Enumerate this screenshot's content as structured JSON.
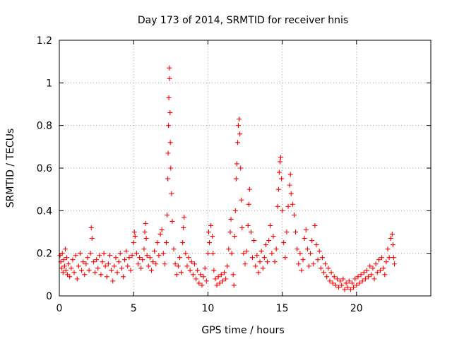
{
  "chart_data": {
    "type": "scatter",
    "title": "Day 173 of 2014, SRMTID for receiver hnis",
    "xlabel": "GPS time / hours",
    "ylabel": "SRMTID / TECUs",
    "xlim": [
      0,
      25
    ],
    "ylim": [
      0,
      1.2
    ],
    "xticks": [
      0,
      5,
      10,
      15,
      20
    ],
    "xtick_labels": [
      "0",
      "5",
      "10",
      "15",
      "20"
    ],
    "yticks": [
      0,
      0.2,
      0.4,
      0.6,
      0.8,
      1,
      1.2
    ],
    "ytick_labels": [
      "0",
      "0.2",
      "0.4",
      "0.6",
      "0.8",
      "1",
      "1.2"
    ],
    "grid": true,
    "marker": "+",
    "color": "#ff0000",
    "series": [
      {
        "name": "SRMTID",
        "points": [
          [
            0.05,
            0.19
          ],
          [
            0.1,
            0.16
          ],
          [
            0.15,
            0.13
          ],
          [
            0.2,
            0.2
          ],
          [
            0.25,
            0.11
          ],
          [
            0.3,
            0.17
          ],
          [
            0.35,
            0.14
          ],
          [
            0.4,
            0.22
          ],
          [
            0.45,
            0.12
          ],
          [
            0.5,
            0.18
          ],
          [
            0.55,
            0.1
          ],
          [
            0.6,
            0.15
          ],
          [
            0.7,
            0.09
          ],
          [
            0.8,
            0.13
          ],
          [
            0.9,
            0.17
          ],
          [
            1.0,
            0.11
          ],
          [
            1.1,
            0.19
          ],
          [
            1.2,
            0.08
          ],
          [
            1.3,
            0.14
          ],
          [
            1.4,
            0.2
          ],
          [
            1.5,
            0.12
          ],
          [
            1.6,
            0.16
          ],
          [
            1.7,
            0.1
          ],
          [
            1.8,
            0.15
          ],
          [
            1.9,
            0.18
          ],
          [
            2.0,
            0.12
          ],
          [
            2.1,
            0.2
          ],
          [
            2.15,
            0.32
          ],
          [
            2.2,
            0.27
          ],
          [
            2.3,
            0.16
          ],
          [
            2.4,
            0.11
          ],
          [
            2.5,
            0.17
          ],
          [
            2.6,
            0.13
          ],
          [
            2.7,
            0.19
          ],
          [
            2.8,
            0.1
          ],
          [
            2.9,
            0.16
          ],
          [
            3.0,
            0.2
          ],
          [
            3.1,
            0.14
          ],
          [
            3.2,
            0.09
          ],
          [
            3.3,
            0.15
          ],
          [
            3.4,
            0.19
          ],
          [
            3.5,
            0.12
          ],
          [
            3.6,
            0.07
          ],
          [
            3.7,
            0.14
          ],
          [
            3.8,
            0.18
          ],
          [
            3.9,
            0.11
          ],
          [
            4.0,
            0.16
          ],
          [
            4.1,
            0.2
          ],
          [
            4.2,
            0.13
          ],
          [
            4.3,
            0.09
          ],
          [
            4.4,
            0.17
          ],
          [
            4.5,
            0.21
          ],
          [
            4.6,
            0.14
          ],
          [
            4.7,
            0.18
          ],
          [
            4.8,
            0.12
          ],
          [
            4.9,
            0.19
          ],
          [
            5.0,
            0.25
          ],
          [
            5.05,
            0.3
          ],
          [
            5.1,
            0.28
          ],
          [
            5.2,
            0.2
          ],
          [
            5.3,
            0.15
          ],
          [
            5.4,
            0.18
          ],
          [
            5.5,
            0.13
          ],
          [
            5.6,
            0.17
          ],
          [
            5.7,
            0.22
          ],
          [
            5.75,
            0.3
          ],
          [
            5.8,
            0.34
          ],
          [
            5.85,
            0.27
          ],
          [
            5.9,
            0.19
          ],
          [
            6.0,
            0.14
          ],
          [
            6.1,
            0.18
          ],
          [
            6.2,
            0.12
          ],
          [
            6.3,
            0.16
          ],
          [
            6.4,
            0.21
          ],
          [
            6.5,
            0.15
          ],
          [
            6.6,
            0.25
          ],
          [
            6.7,
            0.19
          ],
          [
            6.8,
            0.29
          ],
          [
            6.9,
            0.31
          ],
          [
            7.0,
            0.2
          ],
          [
            7.1,
            0.15
          ],
          [
            7.2,
            0.25
          ],
          [
            7.25,
            0.38
          ],
          [
            7.3,
            0.55
          ],
          [
            7.32,
            0.67
          ],
          [
            7.35,
            0.8
          ],
          [
            7.37,
            0.93
          ],
          [
            7.4,
            1.07
          ],
          [
            7.42,
            1.02
          ],
          [
            7.45,
            0.86
          ],
          [
            7.47,
            0.72
          ],
          [
            7.5,
            0.6
          ],
          [
            7.55,
            0.48
          ],
          [
            7.6,
            0.35
          ],
          [
            7.7,
            0.22
          ],
          [
            7.8,
            0.15
          ],
          [
            7.9,
            0.1
          ],
          [
            8.0,
            0.14
          ],
          [
            8.1,
            0.18
          ],
          [
            8.2,
            0.11
          ],
          [
            8.3,
            0.25
          ],
          [
            8.35,
            0.32
          ],
          [
            8.4,
            0.37
          ],
          [
            8.5,
            0.2
          ],
          [
            8.6,
            0.14
          ],
          [
            8.7,
            0.18
          ],
          [
            8.8,
            0.12
          ],
          [
            8.9,
            0.16
          ],
          [
            9.0,
            0.1
          ],
          [
            9.1,
            0.15
          ],
          [
            9.2,
            0.08
          ],
          [
            9.3,
            0.12
          ],
          [
            9.4,
            0.06
          ],
          [
            9.5,
            0.1
          ],
          [
            9.6,
            0.05
          ],
          [
            9.7,
            0.09
          ],
          [
            9.8,
            0.13
          ],
          [
            9.9,
            0.07
          ],
          [
            10.0,
            0.2
          ],
          [
            10.05,
            0.3
          ],
          [
            10.1,
            0.25
          ],
          [
            10.2,
            0.33
          ],
          [
            10.3,
            0.28
          ],
          [
            10.35,
            0.2
          ],
          [
            10.4,
            0.12
          ],
          [
            10.5,
            0.08
          ],
          [
            10.6,
            0.05
          ],
          [
            10.7,
            0.09
          ],
          [
            10.8,
            0.06
          ],
          [
            10.9,
            0.1
          ],
          [
            11.0,
            0.07
          ],
          [
            11.1,
            0.11
          ],
          [
            11.2,
            0.08
          ],
          [
            11.3,
            0.14
          ],
          [
            11.4,
            0.22
          ],
          [
            11.5,
            0.3
          ],
          [
            11.55,
            0.36
          ],
          [
            11.6,
            0.2
          ],
          [
            11.7,
            0.1
          ],
          [
            11.75,
            0.05
          ],
          [
            11.8,
            0.28
          ],
          [
            11.85,
            0.4
          ],
          [
            11.9,
            0.55
          ],
          [
            11.95,
            0.62
          ],
          [
            12.0,
            0.72
          ],
          [
            12.05,
            0.8
          ],
          [
            12.1,
            0.83
          ],
          [
            12.15,
            0.76
          ],
          [
            12.2,
            0.6
          ],
          [
            12.25,
            0.45
          ],
          [
            12.3,
            0.32
          ],
          [
            12.4,
            0.2
          ],
          [
            12.5,
            0.15
          ],
          [
            12.6,
            0.21
          ],
          [
            12.7,
            0.33
          ],
          [
            12.75,
            0.43
          ],
          [
            12.8,
            0.5
          ],
          [
            12.9,
            0.3
          ],
          [
            13.0,
            0.18
          ],
          [
            13.1,
            0.26
          ],
          [
            13.2,
            0.14
          ],
          [
            13.3,
            0.19
          ],
          [
            13.4,
            0.11
          ],
          [
            13.5,
            0.16
          ],
          [
            13.6,
            0.21
          ],
          [
            13.7,
            0.13
          ],
          [
            13.8,
            0.18
          ],
          [
            13.9,
            0.24
          ],
          [
            14.0,
            0.16
          ],
          [
            14.1,
            0.26
          ],
          [
            14.2,
            0.33
          ],
          [
            14.3,
            0.2
          ],
          [
            14.4,
            0.28
          ],
          [
            14.5,
            0.16
          ],
          [
            14.6,
            0.22
          ],
          [
            14.7,
            0.42
          ],
          [
            14.75,
            0.5
          ],
          [
            14.8,
            0.58
          ],
          [
            14.85,
            0.63
          ],
          [
            14.9,
            0.65
          ],
          [
            14.95,
            0.55
          ],
          [
            15.0,
            0.4
          ],
          [
            15.1,
            0.25
          ],
          [
            15.2,
            0.18
          ],
          [
            15.3,
            0.3
          ],
          [
            15.4,
            0.42
          ],
          [
            15.5,
            0.52
          ],
          [
            15.55,
            0.57
          ],
          [
            15.6,
            0.48
          ],
          [
            15.7,
            0.43
          ],
          [
            15.8,
            0.38
          ],
          [
            15.9,
            0.3
          ],
          [
            16.0,
            0.22
          ],
          [
            16.1,
            0.15
          ],
          [
            16.2,
            0.2
          ],
          [
            16.3,
            0.12
          ],
          [
            16.4,
            0.17
          ],
          [
            16.5,
            0.27
          ],
          [
            16.6,
            0.31
          ],
          [
            16.7,
            0.22
          ],
          [
            16.8,
            0.14
          ],
          [
            16.9,
            0.2
          ],
          [
            17.0,
            0.26
          ],
          [
            17.1,
            0.15
          ],
          [
            17.2,
            0.33
          ],
          [
            17.3,
            0.24
          ],
          [
            17.4,
            0.17
          ],
          [
            17.5,
            0.21
          ],
          [
            17.6,
            0.13
          ],
          [
            17.7,
            0.18
          ],
          [
            17.8,
            0.11
          ],
          [
            17.9,
            0.15
          ],
          [
            18.0,
            0.09
          ],
          [
            18.1,
            0.13
          ],
          [
            18.2,
            0.07
          ],
          [
            18.3,
            0.11
          ],
          [
            18.4,
            0.06
          ],
          [
            18.5,
            0.09
          ],
          [
            18.6,
            0.05
          ],
          [
            18.7,
            0.08
          ],
          [
            18.8,
            0.04
          ],
          [
            18.9,
            0.07
          ],
          [
            19.0,
            0.05
          ],
          [
            19.1,
            0.08
          ],
          [
            19.2,
            0.03
          ],
          [
            19.3,
            0.06
          ],
          [
            19.4,
            0.04
          ],
          [
            19.5,
            0.07
          ],
          [
            19.6,
            0.03
          ],
          [
            19.7,
            0.06
          ],
          [
            19.8,
            0.04
          ],
          [
            19.9,
            0.08
          ],
          [
            20.0,
            0.05
          ],
          [
            20.1,
            0.09
          ],
          [
            20.2,
            0.06
          ],
          [
            20.3,
            0.1
          ],
          [
            20.4,
            0.07
          ],
          [
            20.5,
            0.11
          ],
          [
            20.6,
            0.08
          ],
          [
            20.7,
            0.12
          ],
          [
            20.8,
            0.09
          ],
          [
            20.9,
            0.14
          ],
          [
            21.0,
            0.1
          ],
          [
            21.1,
            0.13
          ],
          [
            21.2,
            0.08
          ],
          [
            21.3,
            0.15
          ],
          [
            21.4,
            0.11
          ],
          [
            21.5,
            0.17
          ],
          [
            21.6,
            0.12
          ],
          [
            21.7,
            0.18
          ],
          [
            21.8,
            0.13
          ],
          [
            21.9,
            0.1
          ],
          [
            22.0,
            0.16
          ],
          [
            22.1,
            0.22
          ],
          [
            22.2,
            0.18
          ],
          [
            22.3,
            0.27
          ],
          [
            22.4,
            0.29
          ],
          [
            22.45,
            0.24
          ],
          [
            22.5,
            0.18
          ],
          [
            22.55,
            0.15
          ]
        ]
      }
    ]
  }
}
